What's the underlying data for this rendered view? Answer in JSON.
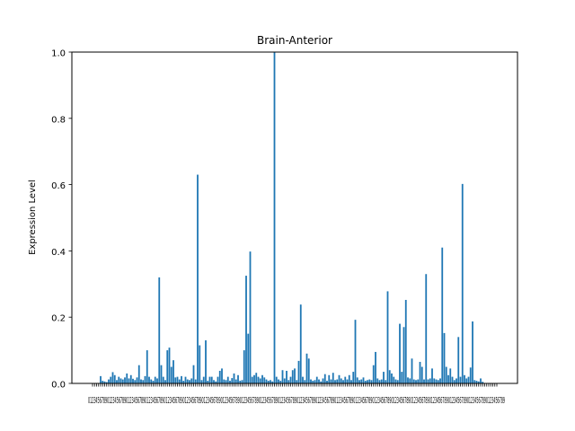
{
  "chart_data": {
    "type": "bar",
    "title": "Brain-Anterior",
    "xlabel": "",
    "ylabel": "Expression Level",
    "ylim": [
      0,
      1.0
    ],
    "yticks": [
      0.0,
      0.2,
      0.4,
      0.6,
      0.8,
      1.0
    ],
    "ytick_labels": [
      "0.0",
      "0.2",
      "0.4",
      "0.6",
      "0.8",
      "1.0"
    ],
    "xtick_label_text": "0123456789012345678901234567890123456789012345678901234567890123456789012345678901234567890123456789012345678901234567890123456789012345678901234567890123456789012345678901234567890123456789012345678901234567890123456789",
    "bar_color": "#1f77b4",
    "grid": false,
    "values": [
      0,
      0,
      0,
      0,
      0.022,
      0.008,
      0.006,
      0.004,
      0.012,
      0.02,
      0.034,
      0.025,
      0.01,
      0.02,
      0.015,
      0.012,
      0.018,
      0.03,
      0.015,
      0.025,
      0.014,
      0.01,
      0.018,
      0.055,
      0.012,
      0.01,
      0.022,
      0.1,
      0.02,
      0.012,
      0.008,
      0.02,
      0.015,
      0.32,
      0.055,
      0.02,
      0.01,
      0.1,
      0.108,
      0.05,
      0.07,
      0.018,
      0.02,
      0.012,
      0.022,
      0.008,
      0.02,
      0.012,
      0.01,
      0.015,
      0.055,
      0.012,
      0.63,
      0.115,
      0.01,
      0.02,
      0.13,
      0.008,
      0.02,
      0.02,
      0.01,
      0.006,
      0.02,
      0.038,
      0.045,
      0.012,
      0.01,
      0.02,
      0.008,
      0.016,
      0.03,
      0.012,
      0.025,
      0.008,
      0.01,
      0.1,
      0.325,
      0.15,
      0.398,
      0.02,
      0.025,
      0.032,
      0.02,
      0.015,
      0.025,
      0.018,
      0.012,
      0.008,
      0.01,
      0.006,
      1.0,
      0.02,
      0.012,
      0.008,
      0.04,
      0.015,
      0.038,
      0.01,
      0.02,
      0.04,
      0.045,
      0.01,
      0.068,
      0.238,
      0.02,
      0.01,
      0.09,
      0.075,
      0.012,
      0.008,
      0.01,
      0.02,
      0.012,
      0.006,
      0.015,
      0.028,
      0.008,
      0.025,
      0.012,
      0.032,
      0.01,
      0.012,
      0.025,
      0.015,
      0.01,
      0.02,
      0.012,
      0.025,
      0.01,
      0.035,
      0.192,
      0.018,
      0.01,
      0.012,
      0.018,
      0.008,
      0.01,
      0.012,
      0.01,
      0.055,
      0.095,
      0.015,
      0.01,
      0.012,
      0.035,
      0.01,
      0.278,
      0.04,
      0.03,
      0.02,
      0.012,
      0.01,
      0.18,
      0.035,
      0.17,
      0.252,
      0.018,
      0.015,
      0.075,
      0.012,
      0.01,
      0.012,
      0.065,
      0.05,
      0.012,
      0.33,
      0.012,
      0.015,
      0.045,
      0.015,
      0.012,
      0.01,
      0.015,
      0.41,
      0.152,
      0.05,
      0.025,
      0.045,
      0.02,
      0.01,
      0.015,
      0.14,
      0.02,
      0.602,
      0.025,
      0.015,
      0.02,
      0.048,
      0.187,
      0.01,
      0.008,
      0.006,
      0.015,
      0.005,
      0,
      0,
      0,
      0,
      0,
      0,
      0
    ]
  }
}
